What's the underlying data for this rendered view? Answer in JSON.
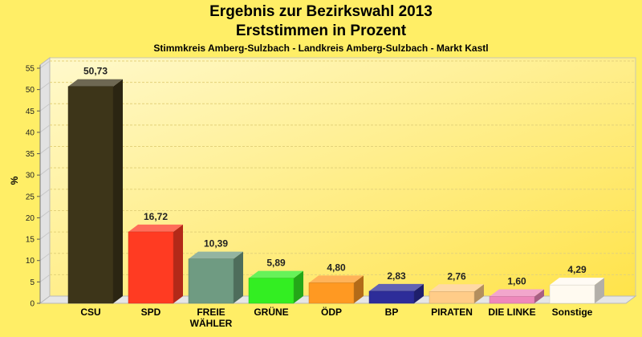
{
  "chart_data": {
    "type": "bar",
    "title": "Ergebnis zur Bezirkswahl 2013",
    "subtitle": "Erststimmen in Prozent",
    "subsubtitle": "Stimmkreis Amberg-Sulzbach - Landkreis Amberg-Sulzbach - Markt Kastl",
    "ylabel": "%",
    "ylim": [
      0,
      55
    ],
    "yticks": [
      0,
      5,
      10,
      15,
      20,
      25,
      30,
      35,
      40,
      45,
      50,
      55
    ],
    "grid": true,
    "categories": [
      "CSU",
      "SPD",
      "FREIE WÄHLER",
      "GRÜNE",
      "ÖDP",
      "BP",
      "PIRATEN",
      "DIE LINKE",
      "Sonstige"
    ],
    "values": [
      50.73,
      16.72,
      10.39,
      5.89,
      4.8,
      2.83,
      2.76,
      1.6,
      4.29
    ],
    "value_labels": [
      "50,73",
      "16,72",
      "10,39",
      "5,89",
      "4,80",
      "2,83",
      "2,76",
      "1,60",
      "4,29"
    ],
    "colors": [
      "#3d3519",
      "#ff3b22",
      "#6f9b82",
      "#33ee22",
      "#ff9922",
      "#2d2d99",
      "#ffcc88",
      "#ee88bb",
      "#fffaf0"
    ]
  }
}
